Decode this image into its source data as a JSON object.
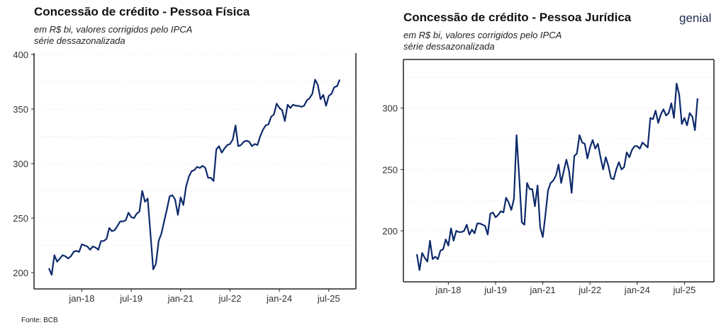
{
  "source": "Fonte: BCB",
  "logo": {
    "text": "genial",
    "color": "#1b2a4e"
  },
  "line_color": "#0d2a6b",
  "chart_data": [
    {
      "type": "line",
      "title": "Concessão de crédito - Pessoa Física",
      "subtitle1": "em R$ bi, valores corrigidos pelo IPCA",
      "subtitle2": "série dessazonalizada",
      "start_month": "2017-01",
      "frequency": "monthly",
      "xticks": [
        {
          "label": "jan-18",
          "index": 12
        },
        {
          "label": "jul-19",
          "index": 30
        },
        {
          "label": "jan-21",
          "index": 48
        },
        {
          "label": "jul-22",
          "index": 66
        },
        {
          "label": "jan-24",
          "index": 84
        },
        {
          "label": "jul-25",
          "index": 102
        }
      ],
      "yticks": [
        "200",
        "250",
        "300",
        "350",
        "400"
      ],
      "ylim": [
        186,
        405
      ],
      "values": [
        204,
        198,
        216,
        210,
        213,
        216,
        215,
        213,
        215,
        219,
        220,
        219,
        226,
        225,
        224,
        221,
        224,
        223,
        221,
        229,
        229,
        231,
        241,
        238,
        239,
        243,
        247,
        247,
        248,
        255,
        251,
        250,
        254,
        256,
        275,
        265,
        268,
        236,
        203,
        208,
        229,
        236,
        247,
        258,
        270,
        271,
        267,
        253,
        269,
        262,
        279,
        288,
        293,
        294,
        297,
        296,
        298,
        296,
        287,
        287,
        284,
        313,
        316,
        310,
        314,
        317,
        318,
        322,
        335,
        316,
        317,
        320,
        321,
        320,
        316,
        318,
        317,
        325,
        331,
        335,
        336,
        343,
        345,
        355,
        351,
        349,
        339,
        354,
        351,
        354,
        353,
        353,
        352,
        353,
        358,
        360,
        364,
        377,
        372,
        359,
        363,
        353,
        362,
        364,
        370,
        371,
        377
      ]
    },
    {
      "type": "line",
      "title": "Concessão de crédito - Pessoa Jurídica",
      "subtitle1": "em R$ bi, valores corrigidos pelo IPCA",
      "subtitle2": "série dessazonalizada",
      "start_month": "2017-01",
      "frequency": "monthly",
      "xticks": [
        {
          "label": "jan-18",
          "index": 12
        },
        {
          "label": "jul-19",
          "index": 30
        },
        {
          "label": "jan-21",
          "index": 48
        },
        {
          "label": "jul-22",
          "index": 66
        },
        {
          "label": "jan-24",
          "index": 84
        },
        {
          "label": "jul-25",
          "index": 102
        }
      ],
      "yticks": [
        "200",
        "250",
        "300"
      ],
      "ylim": [
        158,
        340
      ],
      "values": [
        181,
        168,
        182,
        178,
        175,
        192,
        177,
        179,
        177,
        184,
        185,
        193,
        188,
        202,
        192,
        200,
        199,
        199,
        200,
        205,
        197,
        201,
        198,
        206,
        206,
        205,
        204,
        197,
        214,
        215,
        211,
        213,
        216,
        215,
        227,
        223,
        217,
        226,
        278,
        244,
        207,
        205,
        239,
        234,
        234,
        220,
        237,
        203,
        195,
        213,
        233,
        239,
        241,
        245,
        254,
        239,
        249,
        258,
        249,
        231,
        261,
        263,
        278,
        272,
        271,
        259,
        268,
        274,
        267,
        271,
        260,
        250,
        260,
        253,
        243,
        242,
        250,
        256,
        250,
        252,
        264,
        260,
        266,
        269,
        269,
        267,
        272,
        270,
        268,
        292,
        291,
        298,
        288,
        295,
        299,
        294,
        296,
        304,
        292,
        320,
        311,
        287,
        292,
        286,
        296,
        293,
        282,
        308
      ]
    }
  ]
}
